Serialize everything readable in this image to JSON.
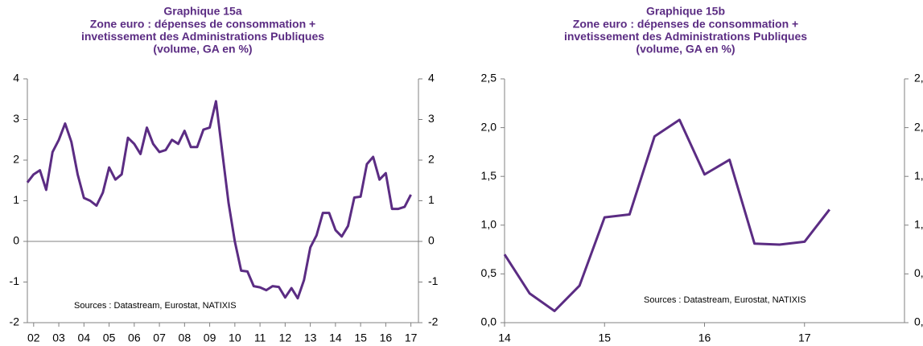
{
  "chart_data": [
    {
      "type": "line",
      "title": "Graphique 15a",
      "subtitle": [
        "Zone euro : dépenses de consommation +",
        "invetissement  des Administrations Publiques",
        "(volume, GA en %)"
      ],
      "annotation": "Sources : Datastream, Eurostat, NATIXIS",
      "x": [
        2001.75,
        2002,
        2002.25,
        2002.5,
        2002.75,
        2003,
        2003.25,
        2003.5,
        2003.75,
        2004,
        2004.25,
        2004.5,
        2004.75,
        2005,
        2005.25,
        2005.5,
        2005.75,
        2006,
        2006.25,
        2006.5,
        2006.75,
        2007,
        2007.25,
        2007.5,
        2007.75,
        2008,
        2008.25,
        2008.5,
        2008.75,
        2009,
        2009.25,
        2009.5,
        2009.75,
        2010,
        2010.25,
        2010.5,
        2010.75,
        2011,
        2011.25,
        2011.5,
        2011.75,
        2012,
        2012.25,
        2012.5,
        2012.75,
        2013,
        2013.25,
        2013.5,
        2013.75,
        2014,
        2014.25,
        2014.5,
        2014.75,
        2015,
        2015.25,
        2015.5,
        2015.75,
        2016,
        2016.25,
        2016.5,
        2016.75,
        2017
      ],
      "series": [
        {
          "color": "#5b2c83",
          "values": [
            1.45,
            1.65,
            1.75,
            1.27,
            2.2,
            2.5,
            2.9,
            2.45,
            1.65,
            1.07,
            1.0,
            0.88,
            1.2,
            1.82,
            1.52,
            1.65,
            2.55,
            2.4,
            2.15,
            2.8,
            2.4,
            2.2,
            2.25,
            2.5,
            2.4,
            2.72,
            2.32,
            2.32,
            2.75,
            2.8,
            3.45,
            2.2,
            0.95,
            0.0,
            -0.72,
            -0.74,
            -1.1,
            -1.13,
            -1.2,
            -1.1,
            -1.12,
            -1.38,
            -1.15,
            -1.4,
            -0.95,
            -0.15,
            0.15,
            0.7,
            0.7,
            0.28,
            0.12,
            0.38,
            1.08,
            1.1,
            1.9,
            2.08,
            1.52,
            1.68,
            0.8,
            0.8,
            0.85,
            1.15
          ]
        }
      ],
      "xlim": [
        2001.75,
        2017.3
      ],
      "xticks": [
        {
          "value": 2002,
          "label": "02"
        },
        {
          "value": 2003,
          "label": "03"
        },
        {
          "value": 2004,
          "label": "04"
        },
        {
          "value": 2005,
          "label": "05"
        },
        {
          "value": 2006,
          "label": "06"
        },
        {
          "value": 2007,
          "label": "07"
        },
        {
          "value": 2008,
          "label": "08"
        },
        {
          "value": 2009,
          "label": "09"
        },
        {
          "value": 2010,
          "label": "10"
        },
        {
          "value": 2011,
          "label": "11"
        },
        {
          "value": 2012,
          "label": "12"
        },
        {
          "value": 2013,
          "label": "13"
        },
        {
          "value": 2014,
          "label": "14"
        },
        {
          "value": 2015,
          "label": "15"
        },
        {
          "value": 2016,
          "label": "16"
        },
        {
          "value": 2017,
          "label": "17"
        }
      ],
      "ylim": [
        -2,
        4
      ],
      "yticks": [
        -2,
        -1,
        0,
        1,
        2,
        3,
        4
      ],
      "zero_line": true
    },
    {
      "type": "line",
      "title": "Graphique 15b",
      "subtitle": [
        "Zone euro : dépenses de consommation +",
        "invetissement  des Administrations Publiques",
        "(volume, GA en %)"
      ],
      "annotation": "Sources : Datastream, Eurostat,  NATIXIS",
      "x": [
        2014,
        2014.25,
        2014.5,
        2014.75,
        2015,
        2015.25,
        2015.5,
        2015.75,
        2016,
        2016.25,
        2016.5,
        2016.75,
        2017,
        2017.25
      ],
      "series": [
        {
          "color": "#5b2c83",
          "values": [
            0.7,
            0.3,
            0.12,
            0.38,
            1.08,
            1.11,
            1.91,
            2.08,
            1.52,
            1.67,
            0.81,
            0.8,
            0.83,
            1.16
          ]
        }
      ],
      "xlim": [
        2014,
        2018
      ],
      "xticks": [
        {
          "value": 2014,
          "label": "14"
        },
        {
          "value": 2015,
          "label": "15"
        },
        {
          "value": 2016,
          "label": "16"
        },
        {
          "value": 2017,
          "label": "17"
        }
      ],
      "ylim": [
        0,
        2.5
      ],
      "yticks": [
        {
          "value": 0,
          "label": "0,0"
        },
        {
          "value": 0.5,
          "label": "0,5"
        },
        {
          "value": 1,
          "label": "1,0"
        },
        {
          "value": 1.5,
          "label": "1,5"
        },
        {
          "value": 2,
          "label": "2,0"
        },
        {
          "value": 2.5,
          "label": "2,5"
        }
      ],
      "zero_line": false
    }
  ]
}
